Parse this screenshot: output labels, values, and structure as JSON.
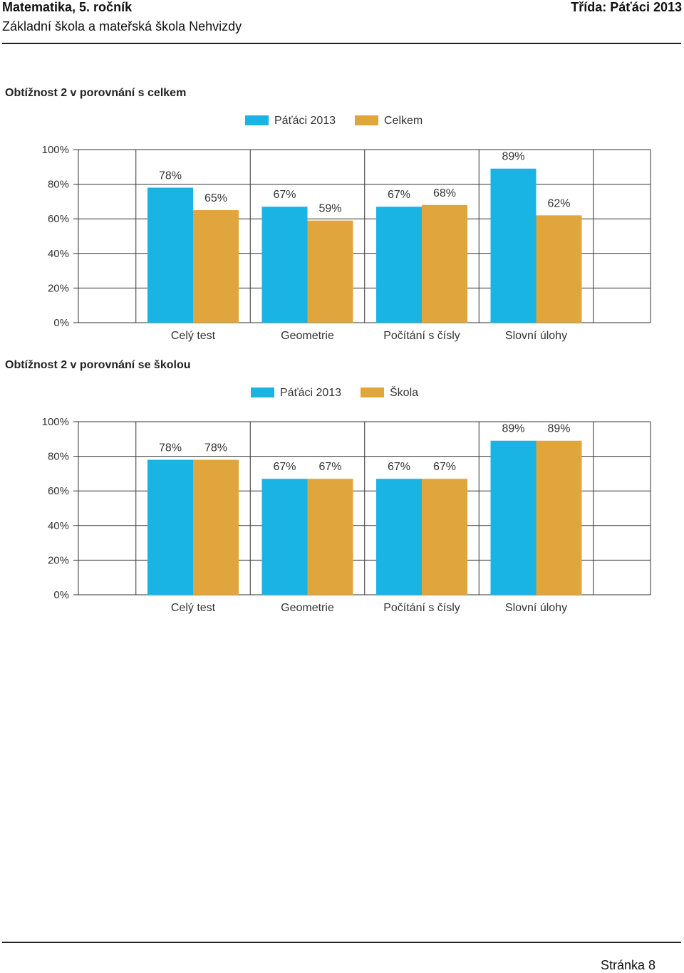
{
  "header": {
    "title": "Matematika, 5. ročník",
    "class_label": "Třída: Páťáci 2013",
    "school": "Základní škola a mateřská škola Nehvizdy"
  },
  "footer": {
    "page_label": "Stránka 8"
  },
  "colors": {
    "series1": "#1ab4e4",
    "series2": "#e0a53c",
    "grid": "#333333"
  },
  "charts": [
    {
      "section_title": "Obtížnost 2 v porovnání s celkem"
    },
    {
      "section_title": "Obtížnost 2 v porovnání se školou"
    }
  ],
  "chart_data": [
    {
      "type": "bar",
      "title": "Obtížnost 2 v porovnání s celkem",
      "categories": [
        "Celý test",
        "Geometrie",
        "Počítání s čísly",
        "Slovní úlohy"
      ],
      "series": [
        {
          "name": "Páťáci 2013",
          "values": [
            78,
            67,
            67,
            89
          ]
        },
        {
          "name": "Celkem",
          "values": [
            65,
            59,
            68,
            62
          ]
        }
      ],
      "yticks": [
        "0%",
        "20%",
        "40%",
        "60%",
        "80%",
        "100%"
      ],
      "ylim": [
        0,
        100
      ],
      "legend": "top-center",
      "grid": true
    },
    {
      "type": "bar",
      "title": "Obtížnost 2 v porovnání se školou",
      "categories": [
        "Celý test",
        "Geometrie",
        "Počítání s čísly",
        "Slovní úlohy"
      ],
      "series": [
        {
          "name": "Páťáci 2013",
          "values": [
            78,
            67,
            67,
            89
          ]
        },
        {
          "name": "Škola",
          "values": [
            78,
            67,
            67,
            89
          ]
        }
      ],
      "yticks": [
        "0%",
        "20%",
        "40%",
        "60%",
        "80%",
        "100%"
      ],
      "ylim": [
        0,
        100
      ],
      "legend": "top-center",
      "grid": true
    }
  ]
}
